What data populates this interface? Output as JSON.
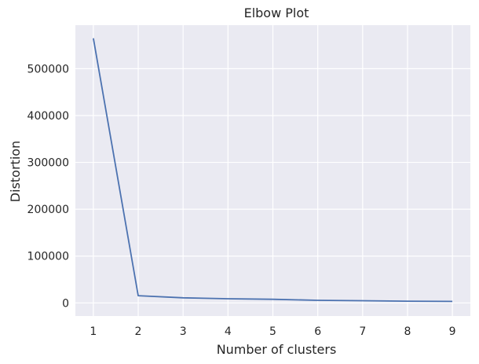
{
  "chart_data": {
    "type": "line",
    "title": "Elbow Plot",
    "xlabel": "Number of clusters",
    "ylabel": "Distortion",
    "x": [
      1,
      2,
      3,
      4,
      5,
      6,
      7,
      8,
      9
    ],
    "series": [
      {
        "values": [
          565000,
          15500,
          11000,
          9000,
          7800,
          5500,
          4800,
          3800,
          3300
        ],
        "color": "#4c72b0"
      }
    ],
    "xticks": [
      1,
      2,
      3,
      4,
      5,
      6,
      7,
      8,
      9
    ],
    "yticks": [
      0,
      100000,
      200000,
      300000,
      400000,
      500000
    ],
    "xlim": [
      0.6,
      9.4
    ],
    "ylim": [
      -28000,
      593000
    ],
    "grid": true,
    "background": "#eaeaf2",
    "grid_color": "#ffffff"
  }
}
